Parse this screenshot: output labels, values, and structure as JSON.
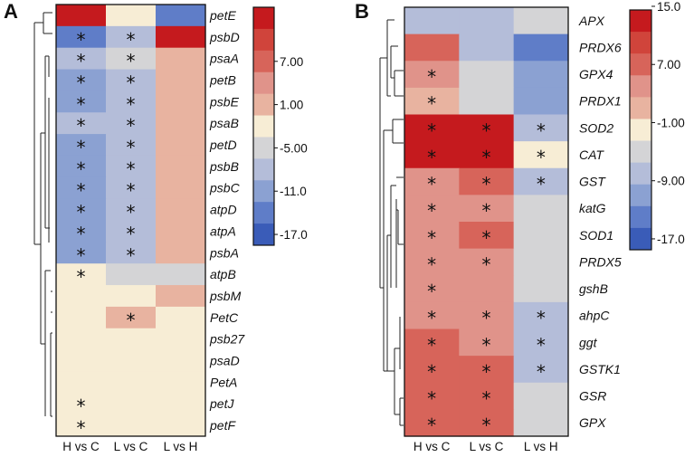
{
  "colors": {
    "-17": "#3a5cb8",
    "-14": "#5f7dc8",
    "-11": "#8ba1d2",
    "-8": "#b4bdd9",
    "-5": "#d4d4d6",
    "-2": "#f7edd5",
    "1": "#e8b3a0",
    "4": "#e0938a",
    "7": "#d7645a",
    "10": "#d0443b",
    "13": "#c51a1e"
  },
  "chart_data": [
    {
      "type": "heatmap",
      "panel_label": "A",
      "columns": [
        "H vs C",
        "L vs C",
        "L vs H"
      ],
      "rows": [
        "petE",
        "psbD",
        "psaA",
        "petB",
        "psbE",
        "psaB",
        "petD",
        "psbB",
        "psbC",
        "atpD",
        "atpA",
        "psbA",
        "atpB",
        "psbM",
        "PetC",
        "psb27",
        "psaD",
        "PetA",
        "petJ",
        "petF"
      ],
      "values": [
        [
          13,
          -2,
          -14
        ],
        [
          -14,
          -8,
          13
        ],
        [
          -8,
          -5,
          1
        ],
        [
          -11,
          -8,
          1
        ],
        [
          -11,
          -8,
          1
        ],
        [
          -8,
          -8,
          1
        ],
        [
          -11,
          -8,
          1
        ],
        [
          -11,
          -8,
          1
        ],
        [
          -11,
          -8,
          1
        ],
        [
          -11,
          -8,
          1
        ],
        [
          -11,
          -8,
          1
        ],
        [
          -11,
          -8,
          1
        ],
        [
          -2,
          -5,
          -5
        ],
        [
          -2,
          -2,
          1
        ],
        [
          -2,
          1,
          -2
        ],
        [
          -2,
          -2,
          -2
        ],
        [
          -2,
          -2,
          -2
        ],
        [
          -2,
          -2,
          -2
        ],
        [
          -2,
          -2,
          -2
        ],
        [
          -2,
          -2,
          -2
        ]
      ],
      "significance": [
        [
          0,
          0,
          0
        ],
        [
          1,
          1,
          0
        ],
        [
          1,
          1,
          0
        ],
        [
          1,
          1,
          0
        ],
        [
          1,
          1,
          0
        ],
        [
          1,
          1,
          0
        ],
        [
          1,
          1,
          0
        ],
        [
          1,
          1,
          0
        ],
        [
          1,
          1,
          0
        ],
        [
          1,
          1,
          0
        ],
        [
          1,
          1,
          0
        ],
        [
          1,
          1,
          0
        ],
        [
          1,
          0,
          0
        ],
        [
          0,
          0,
          0
        ],
        [
          0,
          1,
          0
        ],
        [
          0,
          0,
          0
        ],
        [
          0,
          0,
          0
        ],
        [
          0,
          0,
          0
        ],
        [
          1,
          0,
          0
        ],
        [
          1,
          0,
          0
        ]
      ],
      "legend": {
        "tick_labels": [
          "7.00",
          "1.00",
          "-5.00",
          "-11.0",
          "-17.0"
        ],
        "tick_values": [
          7,
          1,
          -5,
          -11,
          -17
        ],
        "bins": [
          13,
          10,
          7,
          4,
          1,
          -2,
          -5,
          -8,
          -11,
          -14,
          -17
        ]
      }
    },
    {
      "type": "heatmap",
      "panel_label": "B",
      "columns": [
        "H vs C",
        "L vs C",
        "L vs H"
      ],
      "rows": [
        "APX",
        "PRDX6",
        "GPX4",
        "PRDX1",
        "SOD2",
        "CAT",
        "GST",
        "katG",
        "SOD1",
        "PRDX5",
        "gshB",
        "ahpC",
        "ggt",
        "GSTK1",
        "GSR",
        "GPX"
      ],
      "values": [
        [
          -8,
          -8,
          -5
        ],
        [
          7,
          -8,
          -14
        ],
        [
          4,
          -5,
          -11
        ],
        [
          1,
          -5,
          -11
        ],
        [
          13,
          13,
          -8
        ],
        [
          13,
          13,
          -2
        ],
        [
          4,
          7,
          -8
        ],
        [
          4,
          4,
          -5
        ],
        [
          4,
          7,
          -5
        ],
        [
          4,
          4,
          -5
        ],
        [
          4,
          4,
          -5
        ],
        [
          4,
          4,
          -8
        ],
        [
          7,
          4,
          -8
        ],
        [
          7,
          7,
          -8
        ],
        [
          7,
          7,
          -5
        ],
        [
          7,
          7,
          -5
        ]
      ],
      "significance": [
        [
          0,
          0,
          0
        ],
        [
          0,
          0,
          0
        ],
        [
          1,
          0,
          0
        ],
        [
          1,
          0,
          0
        ],
        [
          1,
          1,
          1
        ],
        [
          1,
          1,
          1
        ],
        [
          1,
          1,
          1
        ],
        [
          1,
          1,
          0
        ],
        [
          1,
          1,
          0
        ],
        [
          1,
          1,
          0
        ],
        [
          1,
          0,
          0
        ],
        [
          1,
          1,
          1
        ],
        [
          1,
          1,
          1
        ],
        [
          1,
          1,
          1
        ],
        [
          1,
          1,
          0
        ],
        [
          1,
          1,
          0
        ]
      ],
      "legend": {
        "tick_labels": [
          "15.0",
          "7.00",
          "-1.00",
          "-9.00",
          "-17.0"
        ],
        "tick_values": [
          15,
          7,
          -1,
          -9,
          -17
        ],
        "bins": [
          13,
          10,
          7,
          4,
          1,
          -2,
          -5,
          -8,
          -11,
          -14,
          -17
        ]
      }
    }
  ]
}
